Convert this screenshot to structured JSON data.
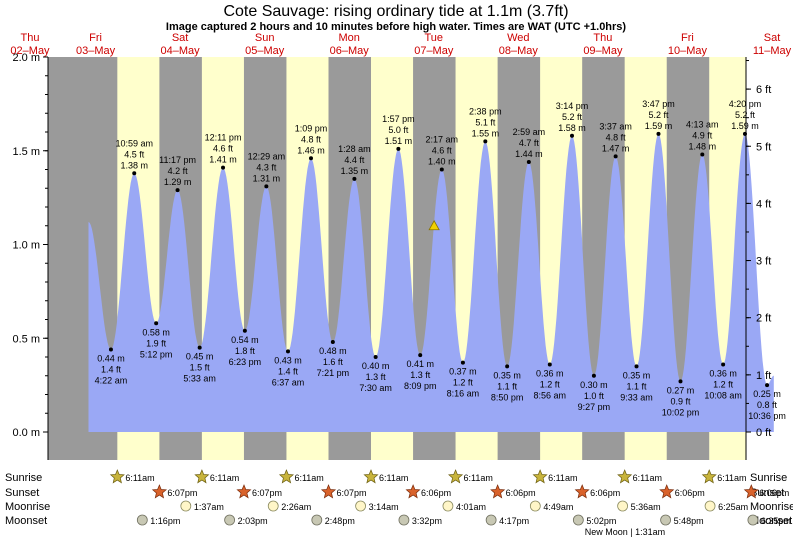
{
  "title": "Cote Sauvage: rising  ordinary tide at 1.1m (3.7ft)",
  "subtitle": "Image captured 2 hours and 10 minutes before high water. Times are WAT (UTC +1.0hrs)",
  "colors": {
    "night": "#9a9a9a",
    "day": "#ffffcc",
    "water": "#9aa8f5",
    "day_text": "#cc0000",
    "marker": "#f0d000"
  },
  "days": [
    {
      "name": "Thu",
      "date": "02–May"
    },
    {
      "name": "Fri",
      "date": "03–May"
    },
    {
      "name": "Sat",
      "date": "04–May"
    },
    {
      "name": "Sun",
      "date": "05–May"
    },
    {
      "name": "Mon",
      "date": "06–May"
    },
    {
      "name": "Tue",
      "date": "07–May"
    },
    {
      "name": "Wed",
      "date": "08–May"
    },
    {
      "name": "Thu",
      "date": "09–May"
    },
    {
      "name": "Fri",
      "date": "10–May"
    },
    {
      "name": "Sat",
      "date": "11–May"
    }
  ],
  "row_labels": {
    "sunrise": "Sunrise",
    "sunset": "Sunset",
    "moonrise": "Moonrise",
    "moonset": "Moonset"
  },
  "sun": {
    "sunrise": [
      "6:11am",
      "6:11am",
      "6:11am",
      "6:11am",
      "6:11am",
      "6:11am",
      "6:11am",
      "6:11am"
    ],
    "sunset": [
      "6:07pm",
      "6:07pm",
      "6:07pm",
      "6:06pm",
      "6:06pm",
      "6:06pm",
      "6:06pm",
      "6:06pm"
    ]
  },
  "moon": {
    "moonrise": [
      "1:37am",
      "2:26am",
      "3:14am",
      "4:01am",
      "4:49am",
      "5:36am",
      "6:25am"
    ],
    "moonset": [
      "1:16pm",
      "2:03pm",
      "2:48pm",
      "3:32pm",
      "4:17pm",
      "5:02pm",
      "5:48pm",
      "6:35pm"
    ],
    "new_moon": "New Moon | 1:31am"
  },
  "chart_data": {
    "type": "area",
    "title": "Cote Sauvage: rising  ordinary tide at 1.1m (3.7ft)",
    "subtitle": "Image captured 2 hours and 10 minutes before high water. Times are WAT (UTC +1.0hrs)",
    "y_left_unit": "m",
    "y_right_unit": "ft",
    "ylim_m": [
      0.0,
      2.0
    ],
    "y_left_ticks": [
      0.0,
      0.5,
      1.0,
      1.5,
      2.0
    ],
    "y_left_tick_labels": [
      "0.0 m",
      "0.5 m",
      "1.0 m",
      "1.5 m",
      "2.0 m"
    ],
    "y_right_ticks_ft": [
      0,
      1,
      2,
      3,
      4,
      5,
      6
    ],
    "y_right_tick_labels": [
      "0 ft",
      "1 ft",
      "2 ft",
      "3 ft",
      "4 ft",
      "5 ft",
      "6 ft"
    ],
    "x_range_days": [
      0,
      9
    ],
    "daylight_windows_hours": [
      [
        6.18,
        18.12
      ]
    ],
    "current": {
      "day": 5,
      "hour": 0.1,
      "height_m": 1.1
    },
    "extremes": [
      {
        "day": 1,
        "hour": 4.37,
        "m": "0.44 m",
        "ft": "1.4 ft",
        "time": "4:22 am",
        "height": 0.44,
        "type": "low"
      },
      {
        "day": 1,
        "hour": 10.98,
        "m": "1.38 m",
        "ft": "4.5 ft",
        "time": "10:59 am",
        "height": 1.38,
        "type": "high"
      },
      {
        "day": 1,
        "hour": 17.2,
        "m": "0.58 m",
        "ft": "1.9 ft",
        "time": "5:12 pm",
        "height": 0.58,
        "type": "low"
      },
      {
        "day": 1,
        "hour": 23.28,
        "m": "1.29 m",
        "ft": "4.2 ft",
        "time": "11:17 pm",
        "height": 1.29,
        "type": "high"
      },
      {
        "day": 2,
        "hour": 5.55,
        "m": "0.45 m",
        "ft": "1.5 ft",
        "time": "5:33 am",
        "height": 0.45,
        "type": "low"
      },
      {
        "day": 2,
        "hour": 12.18,
        "m": "1.41 m",
        "ft": "4.6 ft",
        "time": "12:11 pm",
        "height": 1.41,
        "type": "high"
      },
      {
        "day": 2,
        "hour": 18.38,
        "m": "0.54 m",
        "ft": "1.8 ft",
        "time": "6:23 pm",
        "height": 0.54,
        "type": "low"
      },
      {
        "day": 3,
        "hour": 0.48,
        "m": "1.31 m",
        "ft": "4.3 ft",
        "time": "12:29 am",
        "height": 1.31,
        "type": "high"
      },
      {
        "day": 3,
        "hour": 6.62,
        "m": "0.43 m",
        "ft": "1.4 ft",
        "time": "6:37 am",
        "height": 0.43,
        "type": "low"
      },
      {
        "day": 3,
        "hour": 13.15,
        "m": "1.46 m",
        "ft": "4.8 ft",
        "time": "1:09 pm",
        "height": 1.46,
        "type": "high"
      },
      {
        "day": 3,
        "hour": 19.35,
        "m": "0.48 m",
        "ft": "1.6 ft",
        "time": "7:21 pm",
        "height": 0.48,
        "type": "low"
      },
      {
        "day": 4,
        "hour": 1.47,
        "m": "1.35 m",
        "ft": "4.4 ft",
        "time": "1:28 am",
        "height": 1.35,
        "type": "high"
      },
      {
        "day": 4,
        "hour": 7.5,
        "m": "0.40 m",
        "ft": "1.3 ft",
        "time": "7:30 am",
        "height": 0.4,
        "type": "low"
      },
      {
        "day": 4,
        "hour": 13.95,
        "m": "1.51 m",
        "ft": "5.0 ft",
        "time": "1:57 pm",
        "height": 1.51,
        "type": "high"
      },
      {
        "day": 4,
        "hour": 20.15,
        "m": "0.41 m",
        "ft": "1.3 ft",
        "time": "8:09 pm",
        "height": 0.41,
        "type": "low"
      },
      {
        "day": 5,
        "hour": 2.28,
        "m": "1.40 m",
        "ft": "4.6 ft",
        "time": "2:17 am",
        "height": 1.4,
        "type": "high"
      },
      {
        "day": 5,
        "hour": 8.27,
        "m": "0.37 m",
        "ft": "1.2 ft",
        "time": "8:16 am",
        "height": 0.37,
        "type": "low"
      },
      {
        "day": 5,
        "hour": 14.63,
        "m": "1.55 m",
        "ft": "5.1 ft",
        "time": "2:38 pm",
        "height": 1.55,
        "type": "high"
      },
      {
        "day": 5,
        "hour": 20.83,
        "m": "0.35 m",
        "ft": "1.1 ft",
        "time": "8:50 pm",
        "height": 0.35,
        "type": "low"
      },
      {
        "day": 6,
        "hour": 2.98,
        "m": "1.44 m",
        "ft": "4.7 ft",
        "time": "2:59 am",
        "height": 1.44,
        "type": "high"
      },
      {
        "day": 6,
        "hour": 8.93,
        "m": "0.36 m",
        "ft": "1.2 ft",
        "time": "8:56 am",
        "height": 0.36,
        "type": "low"
      },
      {
        "day": 6,
        "hour": 15.23,
        "m": "1.58 m",
        "ft": "5.2 ft",
        "time": "3:14 pm",
        "height": 1.58,
        "type": "high"
      },
      {
        "day": 6,
        "hour": 21.45,
        "m": "0.30 m",
        "ft": "1.0 ft",
        "time": "9:27 pm",
        "height": 0.3,
        "type": "low"
      },
      {
        "day": 7,
        "hour": 3.62,
        "m": "1.47 m",
        "ft": "4.8 ft",
        "time": "3:37 am",
        "height": 1.47,
        "type": "high"
      },
      {
        "day": 7,
        "hour": 9.55,
        "m": "0.35 m",
        "ft": "1.1 ft",
        "time": "9:33 am",
        "height": 0.35,
        "type": "low"
      },
      {
        "day": 7,
        "hour": 15.78,
        "m": "1.59 m",
        "ft": "5.2 ft",
        "time": "3:47 pm",
        "height": 1.59,
        "type": "high"
      },
      {
        "day": 7,
        "hour": 22.03,
        "m": "0.27 m",
        "ft": "0.9 ft",
        "time": "10:02 pm",
        "height": 0.27,
        "type": "low"
      },
      {
        "day": 8,
        "hour": 4.22,
        "m": "1.48 m",
        "ft": "4.9 ft",
        "time": "4:13 am",
        "height": 1.48,
        "type": "high"
      },
      {
        "day": 8,
        "hour": 10.13,
        "m": "0.36 m",
        "ft": "1.2 ft",
        "time": "10:08 am",
        "height": 0.36,
        "type": "low"
      },
      {
        "day": 8,
        "hour": 16.33,
        "m": "1.59 m",
        "ft": "5.2 ft",
        "time": "4:20 pm",
        "height": 1.59,
        "type": "high"
      },
      {
        "day": 8,
        "hour": 22.6,
        "m": "0.25 m",
        "ft": "0.8 ft",
        "time": "10:36 pm",
        "height": 0.25,
        "type": "low"
      }
    ],
    "curve_start": {
      "day": 0,
      "hour": 22.0,
      "height": 1.12
    },
    "curve_end": {
      "day": 9,
      "hour": 0.5,
      "height": 0.3
    }
  }
}
